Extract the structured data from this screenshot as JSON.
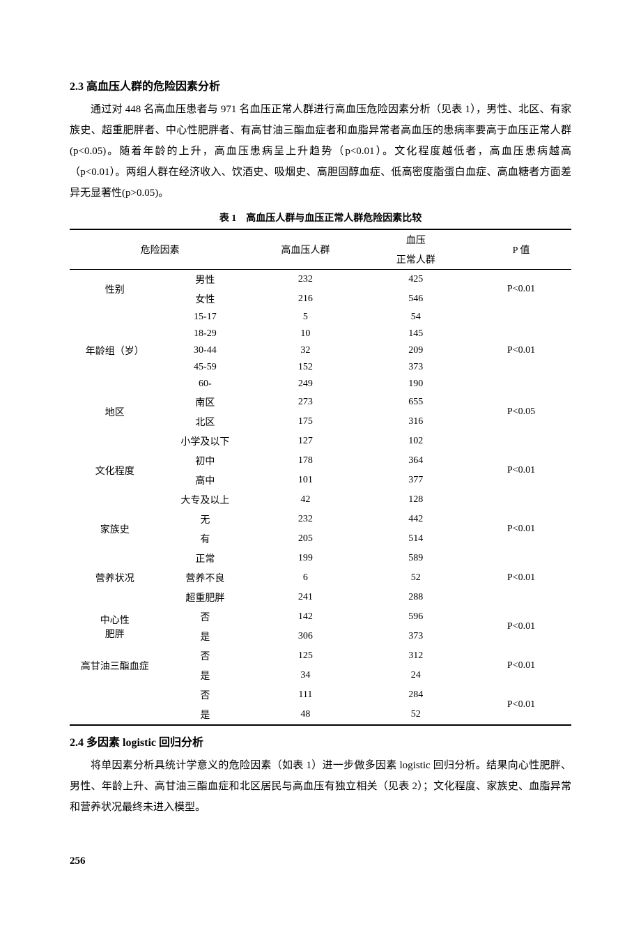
{
  "section23": {
    "heading": "2.3 高血压人群的危险因素分析",
    "paragraph": "通过对 448 名高血压患者与 971 名血压正常人群进行高血压危险因素分析（见表 1），男性、北区、有家族史、超重肥胖者、中心性肥胖者、有高甘油三酯血症者和血脂异常者高血压的患病率要高于血压正常人群(p<0.05)。随着年龄的上升，高血压患病呈上升趋势（p<0.01）。文化程度越低者，高血压患病越高（p<0.01）。两组人群在经济收入、饮酒史、吸烟史、高胆固醇血症、低高密度脂蛋白血症、高血糖者方面差异无显著性(p>0.05)。"
  },
  "table1": {
    "title": "表 1　高血压人群与血压正常人群危险因素比较",
    "header": {
      "factor": "危险因素",
      "hbp": "高血压人群",
      "normal_top": "血压",
      "normal_bottom": "正常人群",
      "p": "P 值"
    },
    "groups": [
      {
        "category": "性别",
        "p": "P<0.01",
        "rows": [
          {
            "sub": "男性",
            "hbp": "232",
            "norm": "425"
          },
          {
            "sub": "女性",
            "hbp": "216",
            "norm": "546"
          }
        ]
      },
      {
        "category": "年龄组（岁）",
        "p": "P<0.01",
        "rows": [
          {
            "sub": "15-17",
            "hbp": "5",
            "norm": "54"
          },
          {
            "sub": "18-29",
            "hbp": "10",
            "norm": "145"
          },
          {
            "sub": "30-44",
            "hbp": "32",
            "norm": "209"
          },
          {
            "sub": "45-59",
            "hbp": "152",
            "norm": "373"
          },
          {
            "sub": "60-",
            "hbp": "249",
            "norm": "190"
          }
        ]
      },
      {
        "category": "地区",
        "p": "P<0.05",
        "rows": [
          {
            "sub": "南区",
            "hbp": "273",
            "norm": "655"
          },
          {
            "sub": "北区",
            "hbp": "175",
            "norm": "316"
          }
        ]
      },
      {
        "category": "文化程度",
        "p": "P<0.01",
        "rows": [
          {
            "sub": "小学及以下",
            "hbp": "127",
            "norm": "102"
          },
          {
            "sub": "初中",
            "hbp": "178",
            "norm": "364"
          },
          {
            "sub": "高中",
            "hbp": "101",
            "norm": "377"
          },
          {
            "sub": "大专及以上",
            "hbp": "42",
            "norm": "128"
          }
        ]
      },
      {
        "category": "家族史",
        "p": "P<0.01",
        "rows": [
          {
            "sub": "无",
            "hbp": "232",
            "norm": "442"
          },
          {
            "sub": "有",
            "hbp": "205",
            "norm": "514"
          }
        ]
      },
      {
        "category": "营养状况",
        "p": "P<0.01",
        "rows": [
          {
            "sub": "正常",
            "hbp": "199",
            "norm": "589"
          },
          {
            "sub": "营养不良",
            "hbp": "6",
            "norm": "52"
          },
          {
            "sub": "超重肥胖",
            "hbp": "241",
            "norm": "288"
          }
        ]
      },
      {
        "category": "中心性\n肥胖",
        "p": "P<0.01",
        "rows": [
          {
            "sub": "否",
            "hbp": "142",
            "norm": "596"
          },
          {
            "sub": "是",
            "hbp": "306",
            "norm": "373"
          }
        ]
      },
      {
        "category": "高甘油三酯血症",
        "p": "P<0.01",
        "rows": [
          {
            "sub": "否",
            "hbp": "125",
            "norm": "312"
          },
          {
            "sub": "是",
            "hbp": "34",
            "norm": "24"
          }
        ]
      },
      {
        "category": "",
        "p": "P<0.01",
        "rows": [
          {
            "sub": "否",
            "hbp": "111",
            "norm": "284"
          },
          {
            "sub": "是",
            "hbp": "48",
            "norm": "52"
          }
        ]
      }
    ]
  },
  "section24": {
    "heading": "2.4 多因素 logistic 回归分析",
    "paragraph": "将单因素分析具统计学意义的危险因素（如表 1）进一步做多因素 logistic 回归分析。结果向心性肥胖、男性、年龄上升、高甘油三酯血症和北区居民与高血压有独立相关（见表 2）；文化程度、家族史、血脂异常和营养状况最终未进入模型。"
  },
  "pageNumber": "256"
}
